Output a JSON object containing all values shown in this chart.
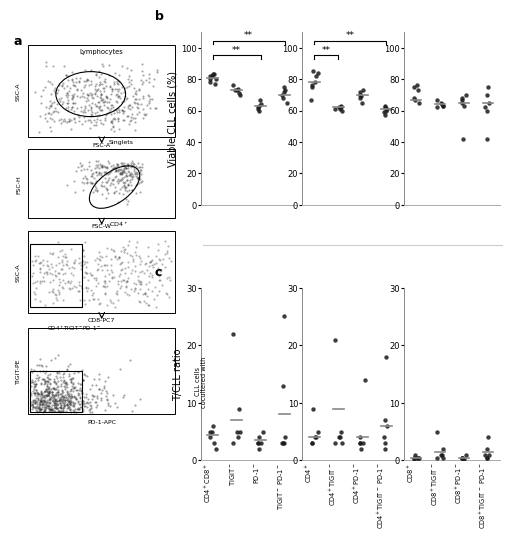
{
  "panel_a_label": "a",
  "panel_b_label": "b",
  "panel_c_label": "c",
  "b_ylabel": "Viable CLL cells (%)",
  "b_ylim": [
    0,
    110
  ],
  "b_yticks": [
    0,
    20,
    40,
    60,
    80,
    100
  ],
  "b1_data": [
    [
      82,
      80,
      83,
      83,
      82,
      80,
      78,
      77
    ],
    [
      73,
      74,
      76,
      70,
      71,
      73
    ],
    [
      62,
      61,
      60,
      64,
      67,
      63
    ],
    [
      73,
      70,
      68,
      72,
      75,
      65
    ]
  ],
  "b1_medians": [
    81,
    73,
    63,
    70
  ],
  "b1_sig": [
    [
      0,
      2,
      "**"
    ],
    [
      0,
      3,
      "**"
    ]
  ],
  "b2_data": [
    [
      85,
      84,
      82,
      78,
      76,
      75,
      67
    ],
    [
      63,
      62,
      61,
      61,
      60,
      62
    ],
    [
      70,
      68,
      72,
      69,
      73,
      65
    ],
    [
      62,
      61,
      59,
      57,
      63,
      60
    ]
  ],
  "b2_medians": [
    78,
    62,
    70,
    61
  ],
  "b2_sig": [
    [
      0,
      1,
      "**"
    ],
    [
      0,
      3,
      "**"
    ]
  ],
  "b3_data": [
    [
      67,
      65,
      73,
      76,
      75,
      68
    ],
    [
      62,
      63,
      65,
      64,
      67,
      63
    ],
    [
      70,
      68,
      65,
      67,
      42,
      63
    ],
    [
      75,
      70,
      65,
      62,
      60,
      42
    ]
  ],
  "b3_medians": [
    67,
    64,
    65,
    65
  ],
  "c_ylabel": "T/CLL ratio",
  "c_ylim": [
    0,
    30
  ],
  "c_yticks": [
    0,
    10,
    20,
    30
  ],
  "c1_data": [
    [
      5,
      2,
      3,
      6,
      4,
      5
    ],
    [
      22,
      9,
      5,
      4,
      3,
      5
    ],
    [
      5,
      4,
      3,
      3,
      2,
      3
    ],
    [
      25,
      13,
      4,
      3,
      3,
      3
    ]
  ],
  "c1_medians": [
    4.5,
    7.0,
    3.5,
    8.0
  ],
  "c1_xlabels": [
    "CD4$^+$CD8$^+$",
    "TIGIT$^-$",
    "PD-1$^-$",
    "TIGIT$^-$ PD-1$^-$"
  ],
  "c2_data": [
    [
      9,
      5,
      4,
      4,
      3,
      3
    ],
    [
      21,
      5,
      4,
      4,
      3,
      3
    ],
    [
      14,
      4,
      3,
      3,
      2,
      3
    ],
    [
      18,
      7,
      6,
      4,
      3,
      2
    ]
  ],
  "c2_medians": [
    4.0,
    9.0,
    4.0,
    6.0
  ],
  "c2_xlabels": [
    "CD4$^+$",
    "CD4$^+$TIGIT$^-$",
    "CD4$^+$PD-1$^-$",
    "CD4$^+$TIGIT$^-$ PD-1$^-$"
  ],
  "c3_data": [
    [
      1.0,
      0.5,
      0.5,
      0.5,
      0.5,
      0.3
    ],
    [
      5.0,
      2.0,
      1.0,
      1.0,
      0.5,
      0.5
    ],
    [
      1.0,
      0.5,
      0.5,
      0.5,
      0.3,
      0.3
    ],
    [
      4.0,
      2.0,
      1.0,
      1.0,
      0.5,
      0.5
    ]
  ],
  "c3_medians": [
    0.5,
    1.5,
    0.5,
    1.5
  ],
  "c3_xlabels": [
    "CD8$^+$",
    "CD8$^+$TIGIT$^-$",
    "CD8$^+$PD-1$^-$",
    "CD8$^+$TIGIT$^-$ PD-1$^-$"
  ],
  "dot_color": "#1a1a1a",
  "median_color": "#888888",
  "dot_size": 10,
  "dot_alpha": 0.85,
  "tick_fontsize": 6,
  "axis_label_fontsize": 7,
  "xlabel_fontsize": 4.8
}
